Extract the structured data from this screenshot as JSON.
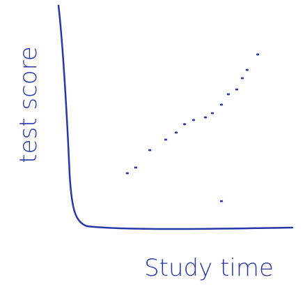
{
  "chart_data": {
    "type": "scatter",
    "x_label": "Study time",
    "y_label": "test score",
    "x": [
      2.35,
      2.74,
      3.39,
      4.13,
      4.61,
      5.0,
      5.42,
      5.97,
      6.29,
      6.71,
      7.03,
      7.42,
      7.68,
      7.9,
      8.39,
      6.71
    ],
    "values": [
      2.44,
      2.7,
      3.49,
      3.97,
      4.29,
      4.67,
      4.86,
      4.98,
      5.17,
      5.56,
      6.03,
      6.25,
      6.76,
      7.14,
      7.84,
      1.17
    ],
    "color": "#2638a8",
    "xlim": [
      0,
      10
    ],
    "ylim": [
      0,
      10
    ]
  }
}
